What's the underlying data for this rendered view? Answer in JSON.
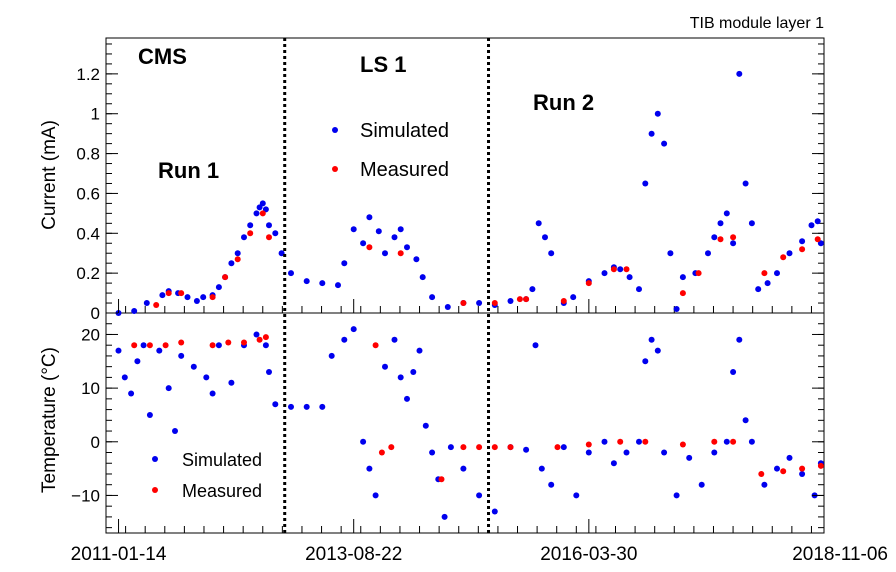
{
  "chart_data": [
    {
      "panel": "top",
      "type": "scatter",
      "title": "TIB module layer 1",
      "ylabel": "Current (mA)",
      "ylim": [
        0,
        1.38
      ],
      "yticks": [
        {
          "value": 0,
          "label": "0"
        },
        {
          "value": 0.2,
          "label": "0.2"
        },
        {
          "value": 0.4,
          "label": "0.4"
        },
        {
          "value": 0.6,
          "label": "0.6"
        },
        {
          "value": 0.8,
          "label": "0.8"
        },
        {
          "value": 1,
          "label": "1"
        },
        {
          "value": 1.2,
          "label": "1.2"
        }
      ],
      "annotations": [
        "CMS",
        "LS 1",
        "Run 1",
        "Run 2"
      ],
      "legend": {
        "simulated": "Simulated",
        "measured": "Measured",
        "position": "top-center"
      },
      "series": [
        {
          "name": "Simulated",
          "color": "#0000ee",
          "approximate_points": [
            [
              0.0,
              0.0
            ],
            [
              0.05,
              0.01
            ],
            [
              0.09,
              0.05
            ],
            [
              0.14,
              0.09
            ],
            [
              0.16,
              0.11
            ],
            [
              0.19,
              0.1
            ],
            [
              0.22,
              0.08
            ],
            [
              0.25,
              0.06
            ],
            [
              0.27,
              0.08
            ],
            [
              0.3,
              0.09
            ],
            [
              0.32,
              0.13
            ],
            [
              0.34,
              0.18
            ],
            [
              0.36,
              0.25
            ],
            [
              0.38,
              0.3
            ],
            [
              0.4,
              0.38
            ],
            [
              0.42,
              0.44
            ],
            [
              0.44,
              0.5
            ],
            [
              0.45,
              0.53
            ],
            [
              0.46,
              0.55
            ],
            [
              0.47,
              0.52
            ],
            [
              0.48,
              0.44
            ],
            [
              0.5,
              0.4
            ],
            [
              0.52,
              0.3
            ],
            [
              0.55,
              0.2
            ],
            [
              0.6,
              0.16
            ],
            [
              0.65,
              0.15
            ],
            [
              0.7,
              0.14
            ],
            [
              0.72,
              0.25
            ],
            [
              0.75,
              0.42
            ],
            [
              0.78,
              0.35
            ],
            [
              0.8,
              0.48
            ],
            [
              0.83,
              0.41
            ],
            [
              0.85,
              0.3
            ],
            [
              0.88,
              0.38
            ],
            [
              0.9,
              0.42
            ],
            [
              0.92,
              0.33
            ],
            [
              0.95,
              0.27
            ],
            [
              0.97,
              0.18
            ],
            [
              1.0,
              0.08
            ],
            [
              1.05,
              0.03
            ],
            [
              1.1,
              0.05
            ],
            [
              1.15,
              0.05
            ],
            [
              1.2,
              0.04
            ],
            [
              1.25,
              0.06
            ],
            [
              1.3,
              0.07
            ],
            [
              1.32,
              0.12
            ],
            [
              1.34,
              0.45
            ],
            [
              1.36,
              0.38
            ],
            [
              1.38,
              0.3
            ],
            [
              1.42,
              0.05
            ],
            [
              1.45,
              0.08
            ],
            [
              1.5,
              0.16
            ],
            [
              1.55,
              0.2
            ],
            [
              1.58,
              0.23
            ],
            [
              1.6,
              0.22
            ],
            [
              1.63,
              0.18
            ],
            [
              1.66,
              0.12
            ],
            [
              1.68,
              0.65
            ],
            [
              1.7,
              0.9
            ],
            [
              1.72,
              1.0
            ],
            [
              1.74,
              0.85
            ],
            [
              1.76,
              0.3
            ],
            [
              1.78,
              0.02
            ],
            [
              1.8,
              0.18
            ],
            [
              1.84,
              0.2
            ],
            [
              1.88,
              0.3
            ],
            [
              1.9,
              0.38
            ],
            [
              1.92,
              0.45
            ],
            [
              1.94,
              0.5
            ],
            [
              1.96,
              0.35
            ],
            [
              1.98,
              1.2
            ],
            [
              2.0,
              0.65
            ],
            [
              2.02,
              0.45
            ],
            [
              2.04,
              0.12
            ],
            [
              2.07,
              0.15
            ],
            [
              2.1,
              0.2
            ],
            [
              2.14,
              0.3
            ],
            [
              2.18,
              0.36
            ],
            [
              2.21,
              0.44
            ],
            [
              2.23,
              0.46
            ],
            [
              2.24,
              0.35
            ]
          ]
        },
        {
          "name": "Measured",
          "color": "#ff0000",
          "approximate_points": [
            [
              0.12,
              0.04
            ],
            [
              0.16,
              0.1
            ],
            [
              0.2,
              0.1
            ],
            [
              0.3,
              0.08
            ],
            [
              0.34,
              0.18
            ],
            [
              0.38,
              0.27
            ],
            [
              0.42,
              0.4
            ],
            [
              0.46,
              0.5
            ],
            [
              0.48,
              0.38
            ],
            [
              0.8,
              0.33
            ],
            [
              0.9,
              0.3
            ],
            [
              1.1,
              0.05
            ],
            [
              1.2,
              0.05
            ],
            [
              1.28,
              0.07
            ],
            [
              1.3,
              0.07
            ],
            [
              1.42,
              0.06
            ],
            [
              1.5,
              0.15
            ],
            [
              1.58,
              0.22
            ],
            [
              1.62,
              0.22
            ],
            [
              1.8,
              0.1
            ],
            [
              1.85,
              0.2
            ],
            [
              1.92,
              0.37
            ],
            [
              1.96,
              0.38
            ],
            [
              2.06,
              0.2
            ],
            [
              2.12,
              0.28
            ],
            [
              2.18,
              0.32
            ],
            [
              2.23,
              0.37
            ]
          ]
        }
      ]
    },
    {
      "panel": "bottom",
      "type": "scatter",
      "xlabel": "",
      "ylabel": "Temperature (°C)",
      "ylim": [
        -17,
        24
      ],
      "yticks": [
        {
          "value": -10,
          "label": "−10"
        },
        {
          "value": 0,
          "label": "0"
        },
        {
          "value": 10,
          "label": "10"
        },
        {
          "value": 20,
          "label": "20"
        }
      ],
      "legend": {
        "simulated": "Simulated",
        "measured": "Measured",
        "position": "bottom-left"
      },
      "series": [
        {
          "name": "Simulated",
          "color": "#0000ee",
          "approximate_points": [
            [
              0.0,
              17
            ],
            [
              0.02,
              12
            ],
            [
              0.04,
              9
            ],
            [
              0.06,
              15
            ],
            [
              0.08,
              18
            ],
            [
              0.1,
              5
            ],
            [
              0.13,
              17
            ],
            [
              0.16,
              10
            ],
            [
              0.18,
              2
            ],
            [
              0.2,
              16
            ],
            [
              0.24,
              14
            ],
            [
              0.28,
              12
            ],
            [
              0.3,
              9
            ],
            [
              0.32,
              18
            ],
            [
              0.36,
              11
            ],
            [
              0.4,
              18
            ],
            [
              0.44,
              20
            ],
            [
              0.47,
              18
            ],
            [
              0.48,
              13
            ],
            [
              0.5,
              7
            ],
            [
              0.55,
              6.5
            ],
            [
              0.6,
              6.5
            ],
            [
              0.65,
              6.5
            ],
            [
              0.68,
              16
            ],
            [
              0.72,
              19
            ],
            [
              0.75,
              21
            ],
            [
              0.78,
              0
            ],
            [
              0.8,
              -5
            ],
            [
              0.82,
              -10
            ],
            [
              0.85,
              14
            ],
            [
              0.88,
              19
            ],
            [
              0.9,
              12
            ],
            [
              0.92,
              8
            ],
            [
              0.94,
              13
            ],
            [
              0.96,
              17
            ],
            [
              0.98,
              3
            ],
            [
              1.0,
              -2
            ],
            [
              1.02,
              -7
            ],
            [
              1.04,
              -14
            ],
            [
              1.06,
              -1
            ],
            [
              1.1,
              -5
            ],
            [
              1.15,
              -10
            ],
            [
              1.2,
              -13
            ],
            [
              1.25,
              -1
            ],
            [
              1.3,
              -1.5
            ],
            [
              1.33,
              18
            ],
            [
              1.35,
              -5
            ],
            [
              1.38,
              -8
            ],
            [
              1.42,
              -1
            ],
            [
              1.46,
              -10
            ],
            [
              1.5,
              -2
            ],
            [
              1.55,
              0
            ],
            [
              1.58,
              -4
            ],
            [
              1.62,
              -2
            ],
            [
              1.66,
              0
            ],
            [
              1.68,
              15
            ],
            [
              1.7,
              19
            ],
            [
              1.72,
              17
            ],
            [
              1.74,
              -2
            ],
            [
              1.78,
              -10
            ],
            [
              1.82,
              -3
            ],
            [
              1.86,
              -8
            ],
            [
              1.9,
              -2
            ],
            [
              1.94,
              0
            ],
            [
              1.96,
              13
            ],
            [
              1.98,
              19
            ],
            [
              2.0,
              4
            ],
            [
              2.02,
              0
            ],
            [
              2.06,
              -8
            ],
            [
              2.1,
              -5
            ],
            [
              2.14,
              -3
            ],
            [
              2.18,
              -6
            ],
            [
              2.22,
              -10
            ],
            [
              2.24,
              -4
            ]
          ]
        },
        {
          "name": "Measured",
          "color": "#ff0000",
          "approximate_points": [
            [
              0.05,
              18
            ],
            [
              0.1,
              18
            ],
            [
              0.15,
              18
            ],
            [
              0.2,
              18.5
            ],
            [
              0.3,
              18
            ],
            [
              0.35,
              18.5
            ],
            [
              0.4,
              18.5
            ],
            [
              0.45,
              19
            ],
            [
              0.47,
              19.5
            ],
            [
              0.82,
              18
            ],
            [
              0.84,
              -2
            ],
            [
              0.87,
              -1
            ],
            [
              1.03,
              -7
            ],
            [
              1.1,
              -1
            ],
            [
              1.15,
              -1
            ],
            [
              1.2,
              -1
            ],
            [
              1.25,
              -1
            ],
            [
              1.4,
              -1
            ],
            [
              1.5,
              -0.5
            ],
            [
              1.6,
              0
            ],
            [
              1.68,
              0
            ],
            [
              1.8,
              -0.5
            ],
            [
              1.9,
              0
            ],
            [
              1.96,
              0
            ],
            [
              2.05,
              -6
            ],
            [
              2.12,
              -5.5
            ],
            [
              2.18,
              -5
            ],
            [
              2.24,
              -4.5
            ]
          ]
        }
      ]
    }
  ],
  "xaxis": {
    "tick_labels": [
      "2011-01-14",
      "2013-08-22",
      "2016-03-30",
      "2018-11-06"
    ],
    "xlim": [
      -0.04,
      2.25
    ],
    "tick_positions": [
      0,
      0.75,
      1.5,
      2.25
    ]
  },
  "dividers": [
    0.53,
    1.18
  ]
}
